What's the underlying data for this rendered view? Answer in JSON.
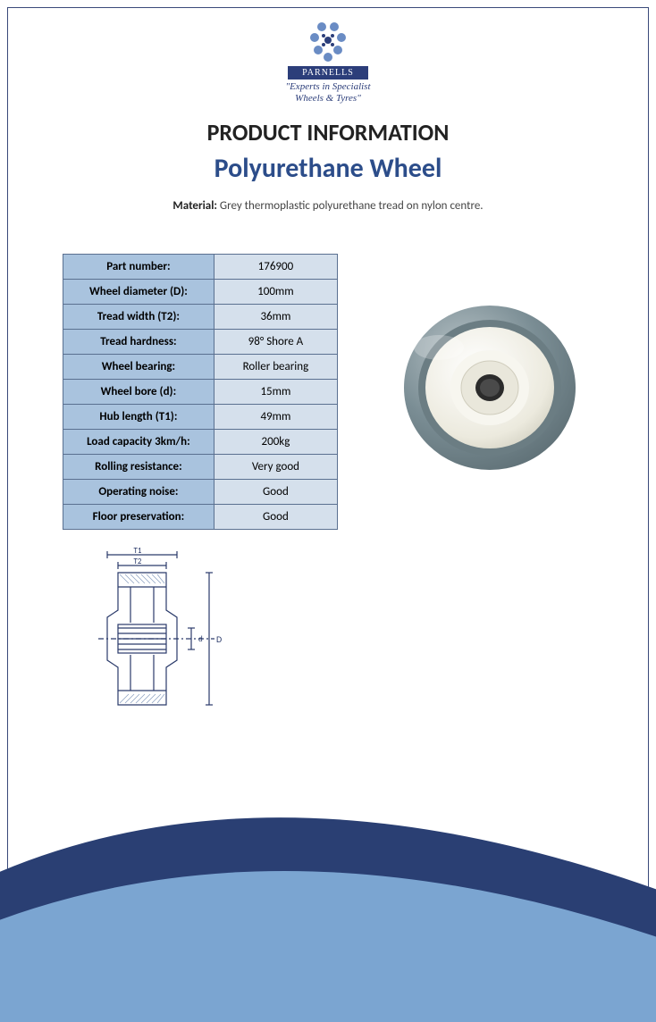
{
  "logo": {
    "brand": "PARNELLS",
    "tagline_line1": "\"Experts in Specialist",
    "tagline_line2": "Wheels & Tyres\"",
    "badge_bg": "#2c3e7a",
    "dot_color": "#6a8cc4"
  },
  "headings": {
    "section": "PRODUCT INFORMATION",
    "product": "Polyurethane Wheel"
  },
  "material": {
    "label": "Material:",
    "text": " Grey thermoplastic polyurethane tread on nylon centre."
  },
  "spec_table": {
    "header_bg": "#a9c3de",
    "value_bg": "#d5e0ec",
    "border_color": "#5a7090",
    "rows": [
      {
        "label": "Part number:",
        "value": "176900"
      },
      {
        "label": "Wheel diameter (D):",
        "value": "100mm"
      },
      {
        "label": "Tread width (T2):",
        "value": "36mm"
      },
      {
        "label": "Tread hardness:",
        "value": "98° Shore A"
      },
      {
        "label": "Wheel bearing:",
        "value": "Roller bearing"
      },
      {
        "label": "Wheel bore (d):",
        "value": "15mm"
      },
      {
        "label": "Hub length (T1):",
        "value": "49mm"
      },
      {
        "label": "Load capacity 3km/h:",
        "value": "200kg"
      },
      {
        "label": "Rolling resistance:",
        "value": "Very good"
      },
      {
        "label": "Operating noise:",
        "value": "Good"
      },
      {
        "label": "Floor preservation:",
        "value": "Good"
      }
    ]
  },
  "diagram": {
    "labels": {
      "t1": "T1",
      "t2": "T2",
      "d_small": "d",
      "d_large": "D"
    },
    "line_color": "#2a3a6a",
    "hatch_color": "#8fa3c2"
  },
  "product_image": {
    "tread_color": "#7a8d94",
    "hub_color": "#f4f4f0",
    "bore_color": "#3a3a3a",
    "highlight": "#cfd6d8"
  },
  "swoosh": {
    "outer": "#2a3f73",
    "inner": "#7ba5d1"
  }
}
